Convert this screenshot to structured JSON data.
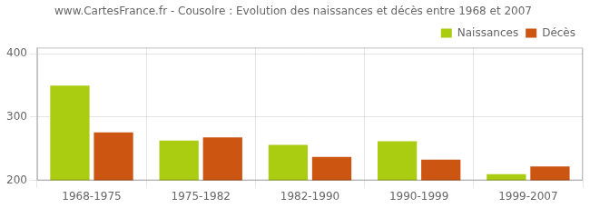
{
  "chart_data": {
    "type": "bar",
    "title": "www.CartesFrance.fr - Cousolre : Evolution des naissances et décès entre 1968 et 2007",
    "categories": [
      "1968-1975",
      "1975-1982",
      "1982-1990",
      "1990-1999",
      "1999-2007"
    ],
    "series": [
      {
        "name": "Naissances",
        "color": "#aacc11",
        "values": [
          350,
          263,
          256,
          262,
          210
        ]
      },
      {
        "name": "Décès",
        "color": "#cc5511",
        "values": [
          276,
          268,
          237,
          233,
          222
        ]
      }
    ],
    "ylim": [
      200,
      410
    ],
    "yticks": [
      200,
      300,
      400
    ],
    "grid": true,
    "legend": "upper right"
  }
}
